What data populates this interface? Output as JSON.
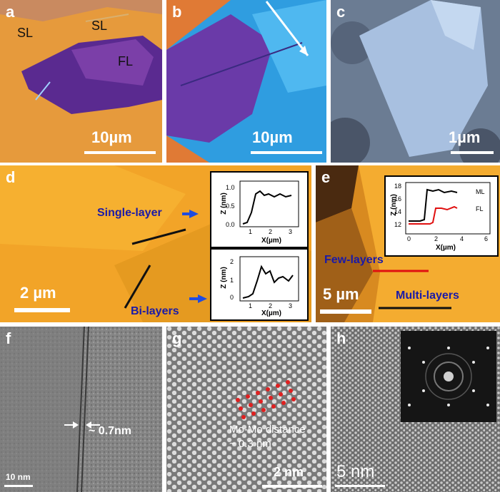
{
  "panels": {
    "a": {
      "label": "a",
      "scale": "10µm",
      "regions": [
        "SL",
        "SL",
        "FL"
      ]
    },
    "b": {
      "label": "b",
      "scale": "10µm"
    },
    "c": {
      "label": "c",
      "scale": "1µm"
    },
    "d": {
      "label": "d",
      "scale": "2 µm",
      "single": "Single-layer",
      "bi": "Bi-layers",
      "inset1": {
        "ylabel": "Z (nm)",
        "xlabel": "X(µm)",
        "yticks": [
          "0.0",
          "0.5",
          "1.0"
        ],
        "xticks": [
          "1",
          "2",
          "3"
        ]
      },
      "inset2": {
        "ylabel": "Z (nm)",
        "xlabel": "X(µm)",
        "yticks": [
          "0",
          "1",
          "2"
        ],
        "xticks": [
          "1",
          "2",
          "3"
        ]
      }
    },
    "e": {
      "label": "e",
      "scale": "5 µm",
      "few": "Few-layers",
      "multi": "Multi-layers",
      "inset": {
        "ylabel": "Z (nm)",
        "xlabel": "X(µm)",
        "yticks": [
          "12",
          "14",
          "16",
          "18"
        ],
        "xticks": [
          "0",
          "2",
          "4",
          "6"
        ],
        "legend": [
          "ML",
          "FL"
        ]
      }
    },
    "f": {
      "label": "f",
      "spacing": "~ 0.7nm",
      "scale": "10 nm"
    },
    "g": {
      "label": "g",
      "note_line1": "Mo-Mo distance",
      "note_line2": "~ 0.3 nm",
      "scale": "2 nm"
    },
    "h": {
      "label": "h",
      "scale": "5 nm"
    }
  },
  "colors": {
    "optical_orange": "#e59a3a",
    "optical_purple": "#6a2aa0",
    "afm_orange": "#f0a020",
    "sem_bg": "#6e7f95",
    "tem_gray": "#8a8a8a"
  }
}
